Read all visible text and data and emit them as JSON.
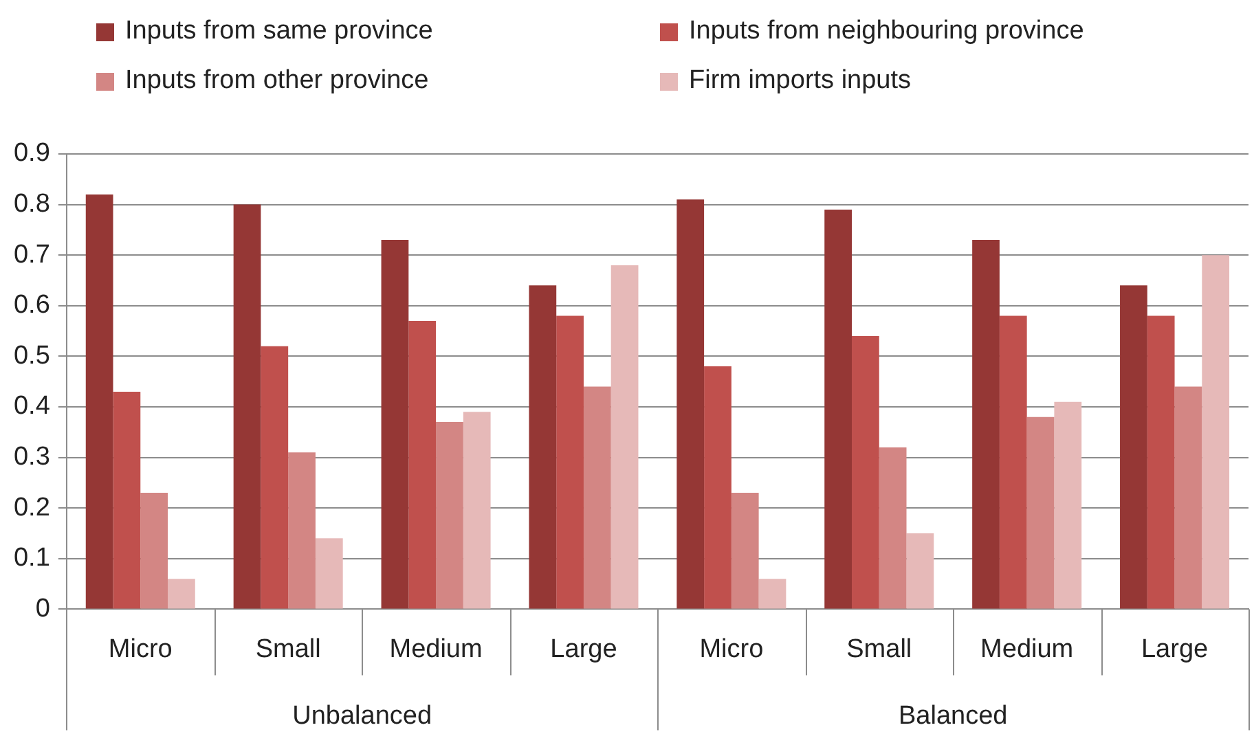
{
  "chart_data": {
    "type": "bar",
    "categories": [
      "Micro",
      "Small",
      "Medium",
      "Large",
      "Micro",
      "Small",
      "Medium",
      "Large"
    ],
    "annotations": [
      "Unbalanced",
      "Balanced"
    ],
    "series": [
      {
        "name": "Inputs from same province",
        "color": "#953735",
        "values": [
          0.82,
          0.8,
          0.73,
          0.64,
          0.81,
          0.79,
          0.73,
          0.64
        ]
      },
      {
        "name": "Inputs from neighbouring province",
        "color": "#c0504d",
        "values": [
          0.43,
          0.52,
          0.57,
          0.58,
          0.48,
          0.54,
          0.58,
          0.58
        ]
      },
      {
        "name": "Inputs from other province",
        "color": "#d38684",
        "values": [
          0.23,
          0.31,
          0.37,
          0.44,
          0.23,
          0.32,
          0.38,
          0.44
        ]
      },
      {
        "name": "Firm imports inputs",
        "color": "#e6b9b8",
        "values": [
          0.06,
          0.14,
          0.39,
          0.68,
          0.06,
          0.15,
          0.41,
          0.7
        ]
      }
    ],
    "ylim": [
      0,
      0.9
    ],
    "yticks": [
      0,
      0.1,
      0.2,
      0.3,
      0.4,
      0.5,
      0.6,
      0.7,
      0.8,
      0.9
    ],
    "grid": "y",
    "legend": "top"
  }
}
